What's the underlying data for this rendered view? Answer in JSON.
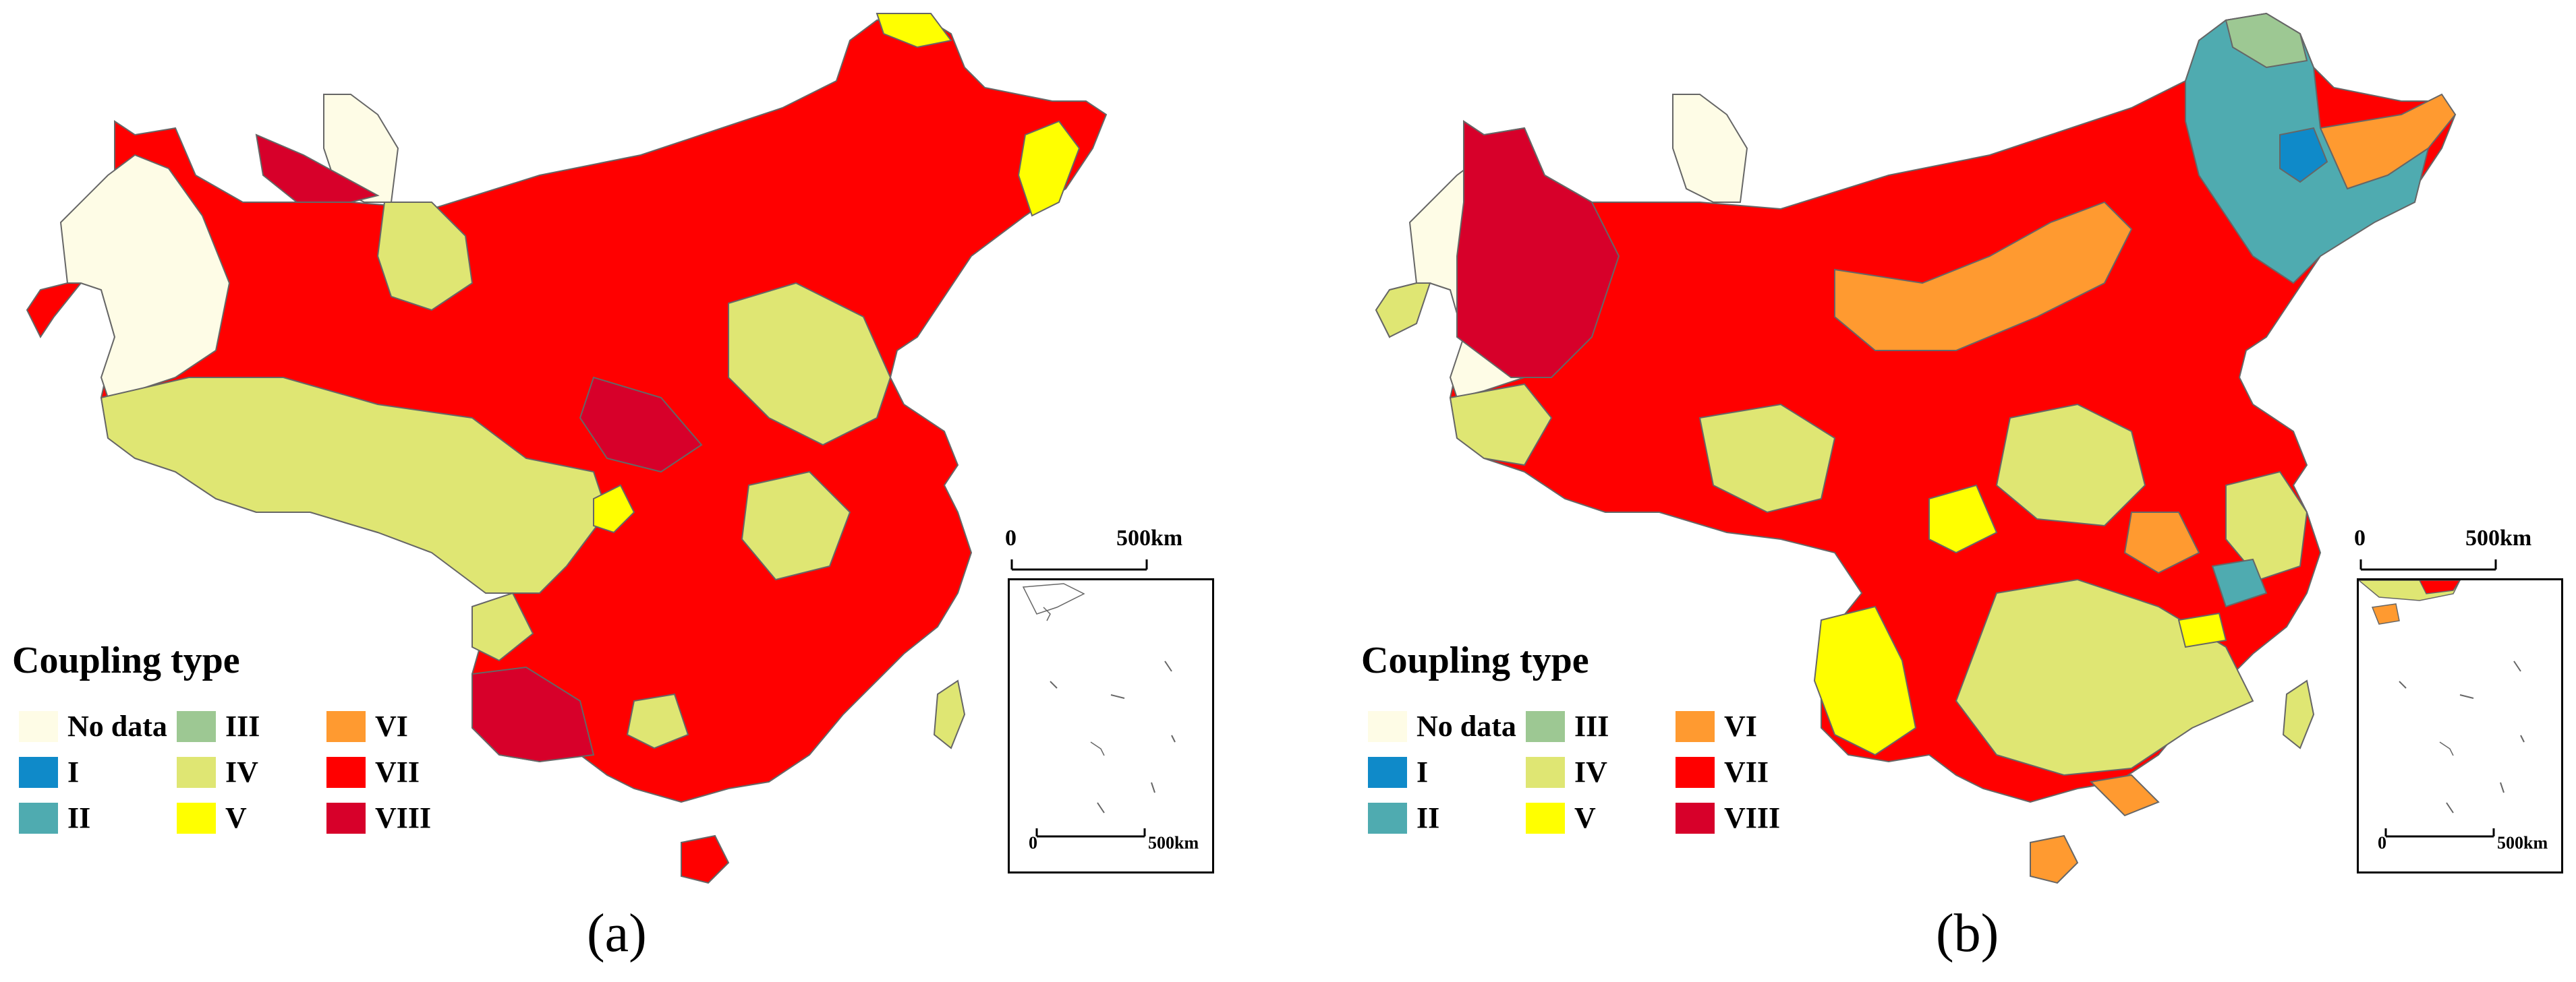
{
  "legend": {
    "title": "Coupling type",
    "items": [
      {
        "label": "No data",
        "color": "#fefce6"
      },
      {
        "label": "I",
        "color": "#0f8ac9"
      },
      {
        "label": "II",
        "color": "#4fabb0"
      },
      {
        "label": "III",
        "color": "#9dc893"
      },
      {
        "label": "IV",
        "color": "#dfe673"
      },
      {
        "label": "V",
        "color": "#ffff00"
      },
      {
        "label": "VI",
        "color": "#ff9a30"
      },
      {
        "label": "VII",
        "color": "#ff0000"
      },
      {
        "label": "VIII",
        "color": "#d7002a"
      }
    ]
  },
  "panels": [
    {
      "id": "a",
      "label": "(a)",
      "dominant_type": "VII",
      "scale_main": {
        "start": "0",
        "end": "500km"
      },
      "scale_inset": {
        "start": "0",
        "end": "500km"
      }
    },
    {
      "id": "b",
      "label": "(b)",
      "dominant_type": "mixed",
      "scale_main": {
        "start": "0",
        "end": "500km"
      },
      "scale_inset": {
        "start": "0",
        "end": "500km"
      }
    }
  ],
  "colors": {
    "border": "#555555",
    "boundary": "#000000"
  }
}
